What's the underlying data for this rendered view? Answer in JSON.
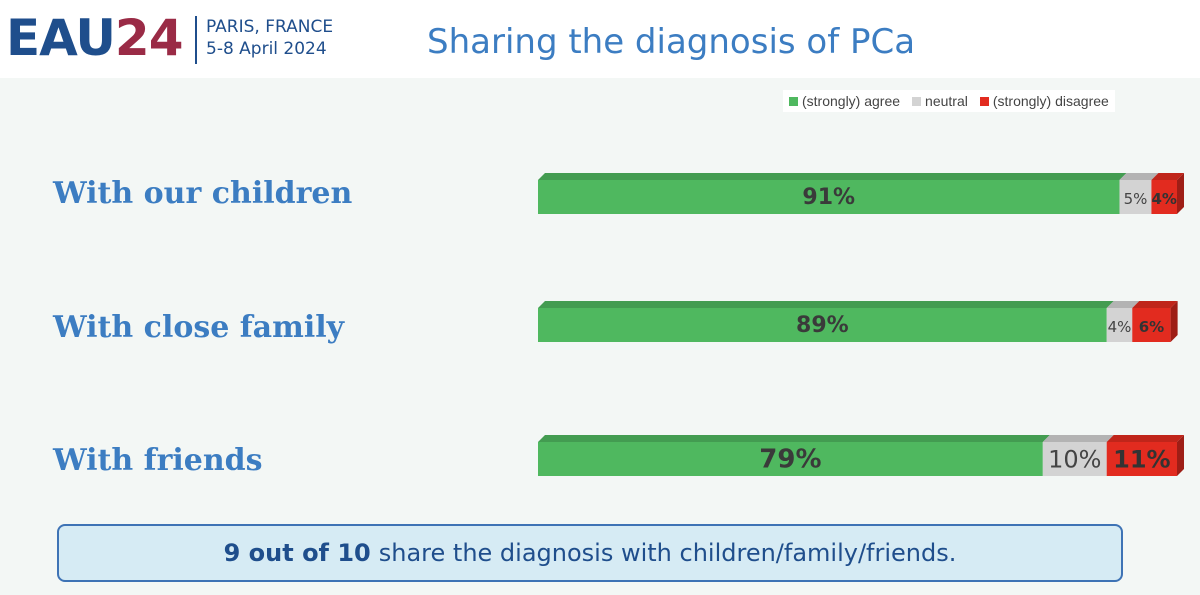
{
  "header": {
    "logo_eau": "EAU",
    "logo_year": "24",
    "location_line1": "PARIS, FRANCE",
    "location_line2": "5-8 April 2024",
    "title": "Sharing the diagnosis of PCa"
  },
  "colors": {
    "agree": "#4fb85f",
    "neutral": "#d3d3d3",
    "disagree": "#e22b1f"
  },
  "chart_data": {
    "type": "bar",
    "orientation": "horizontal",
    "stacked": true,
    "percent": true,
    "categories": [
      "With our children",
      "With close family",
      "With friends"
    ],
    "series": [
      {
        "name": "(strongly) agree",
        "values": [
          91,
          89,
          79
        ],
        "labels": [
          "91%",
          "89%",
          "79%"
        ]
      },
      {
        "name": "neutral",
        "values": [
          5,
          4,
          10
        ],
        "labels": [
          "5%",
          "4%",
          "10%"
        ]
      },
      {
        "name": "(strongly) disagree",
        "values": [
          4,
          6,
          11
        ],
        "labels": [
          "4%",
          "6%",
          "11%"
        ]
      }
    ],
    "legend_position": "top-right",
    "xlim": [
      0,
      100
    ],
    "grid": false
  },
  "callout": {
    "strong_text": "9 out of 10",
    "rest_text": "share the diagnosis with children/family/friends."
  }
}
